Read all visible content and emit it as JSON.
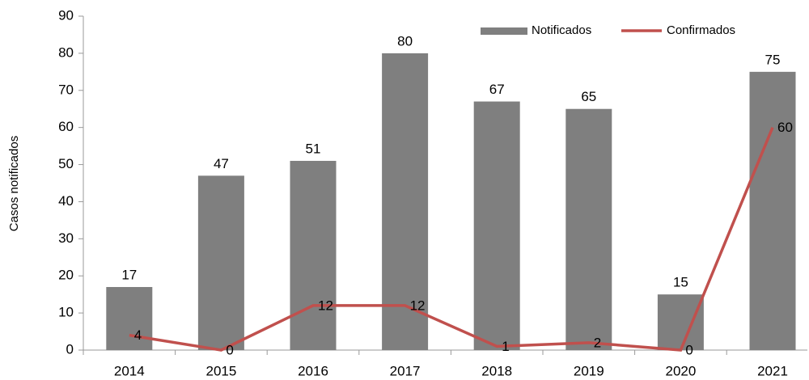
{
  "chart_data": {
    "type": "combo",
    "y_label": "Casos notificados",
    "categories": [
      "2014",
      "2015",
      "2016",
      "2017",
      "2018",
      "2019",
      "2020",
      "2021"
    ],
    "series": [
      {
        "name": "Notificados",
        "type": "bar",
        "color": "#7f7f7f",
        "values": [
          17,
          47,
          51,
          80,
          67,
          65,
          15,
          75
        ]
      },
      {
        "name": "Confirmados",
        "type": "line",
        "color": "#c0504d",
        "values": [
          4,
          0,
          12,
          12,
          1,
          2,
          0,
          60
        ]
      }
    ],
    "ylim": [
      0,
      90
    ],
    "yticks": [
      0,
      10,
      20,
      30,
      40,
      50,
      60,
      70,
      80,
      90
    ],
    "grid": false,
    "legend": "top-right"
  }
}
